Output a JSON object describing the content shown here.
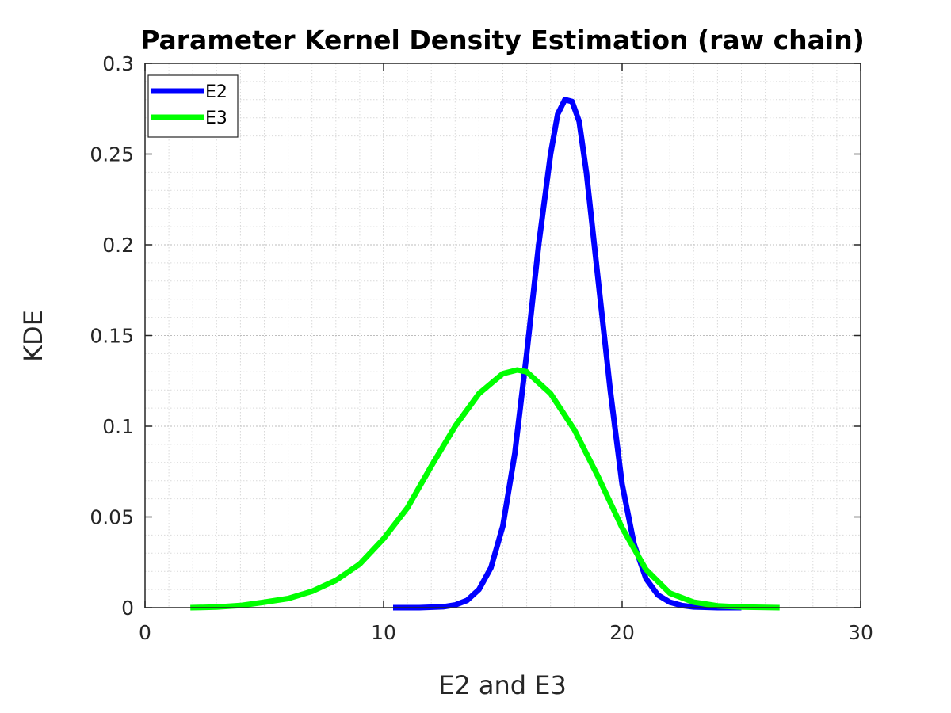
{
  "chart_data": {
    "type": "line",
    "title": "Parameter Kernel Density Estimation (raw chain)",
    "xlabel": "E2 and E3",
    "ylabel": "KDE",
    "xlim": [
      0,
      30
    ],
    "ylim": [
      0,
      0.3
    ],
    "x_ticks": [
      "0",
      "10",
      "20",
      "30"
    ],
    "y_ticks": [
      "0",
      "0.05",
      "0.1",
      "0.15",
      "0.2",
      "0.25",
      "0.3"
    ],
    "grid": true,
    "minor_grid": true,
    "legend_position": "top-left",
    "series": [
      {
        "name": "E2",
        "color": "#0000ff",
        "x": [
          10.4,
          11.5,
          12.5,
          13.0,
          13.5,
          14.0,
          14.5,
          15.0,
          15.5,
          16.0,
          16.5,
          17.0,
          17.3,
          17.6,
          17.9,
          18.2,
          18.5,
          19.0,
          19.5,
          20.0,
          20.5,
          21.0,
          21.5,
          22.0,
          22.5,
          23.0,
          24.0,
          25.0
        ],
        "y": [
          0.0,
          0.0,
          0.0005,
          0.0015,
          0.004,
          0.01,
          0.022,
          0.045,
          0.085,
          0.14,
          0.2,
          0.25,
          0.272,
          0.28,
          0.279,
          0.268,
          0.24,
          0.18,
          0.12,
          0.068,
          0.035,
          0.016,
          0.007,
          0.003,
          0.0012,
          0.0004,
          0.0,
          0.0
        ]
      },
      {
        "name": "E3",
        "color": "#00ff00",
        "x": [
          1.9,
          3.0,
          4.0,
          5.0,
          6.0,
          7.0,
          8.0,
          9.0,
          10.0,
          11.0,
          12.0,
          13.0,
          14.0,
          15.0,
          15.6,
          16.0,
          17.0,
          18.0,
          19.0,
          20.0,
          21.0,
          22.0,
          23.0,
          24.0,
          25.0,
          26.6
        ],
        "y": [
          0.0,
          0.0003,
          0.0012,
          0.003,
          0.005,
          0.009,
          0.015,
          0.024,
          0.038,
          0.055,
          0.078,
          0.1,
          0.118,
          0.129,
          0.131,
          0.13,
          0.118,
          0.098,
          0.072,
          0.044,
          0.021,
          0.008,
          0.003,
          0.001,
          0.0003,
          0.0
        ]
      }
    ]
  }
}
